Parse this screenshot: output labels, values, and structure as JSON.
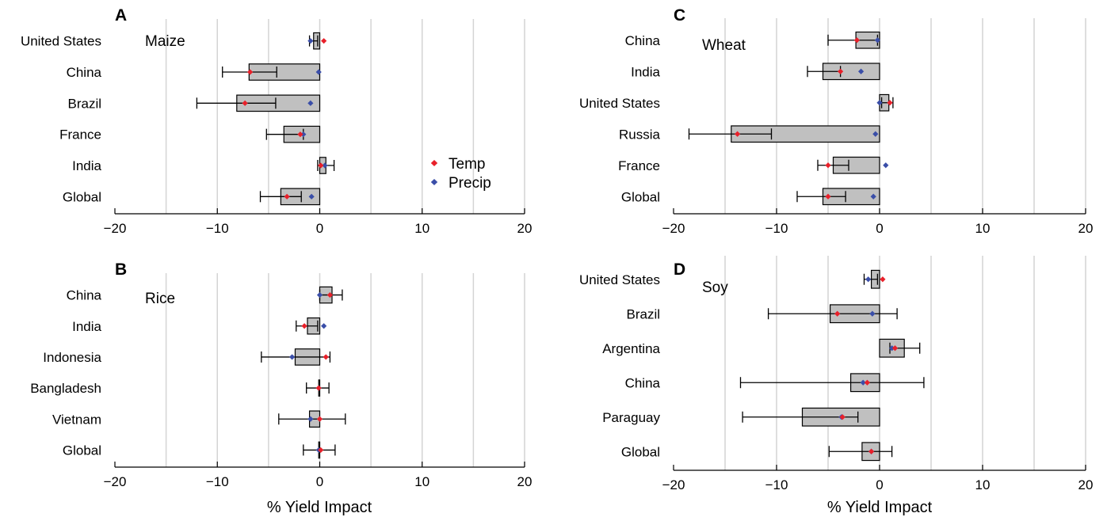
{
  "colors": {
    "bar_fill": "#c0c0c0",
    "bar_stroke": "#000000",
    "grid": "#d4d4d4",
    "temp": "#e8202a",
    "precip": "#3a4ea8"
  },
  "legend": {
    "temp": "Temp",
    "precip": "Precip"
  },
  "xlabel": "% Yield Impact",
  "chart_data": [
    {
      "type": "bar",
      "panel": "A",
      "title": "Maize",
      "xlim": [
        -20,
        20
      ],
      "xticks": [
        -20,
        -10,
        0,
        10,
        20
      ],
      "xtick_labels": [
        "−20",
        "−10",
        "0",
        "10",
        "20"
      ],
      "grid": true,
      "legend_position": "right",
      "categories": [
        "United States",
        "China",
        "Brazil",
        "France",
        "India",
        "Global"
      ],
      "values": [
        -0.6,
        -6.9,
        -8.1,
        -3.5,
        0.6,
        -3.8
      ],
      "error_low": [
        -1.0,
        -9.5,
        -12.0,
        -5.2,
        -0.2,
        -5.8
      ],
      "error_high": [
        -0.2,
        -4.2,
        -4.3,
        -1.6,
        1.4,
        -1.8
      ],
      "temp": [
        0.4,
        -6.8,
        -7.3,
        -1.9,
        0.1,
        -3.2
      ],
      "precip": [
        -0.9,
        -0.1,
        -0.9,
        -1.6,
        0.5,
        -0.8
      ]
    },
    {
      "type": "bar",
      "panel": "B",
      "title": "Rice",
      "xlim": [
        -20,
        20
      ],
      "xticks": [
        -20,
        -10,
        0,
        10,
        20
      ],
      "xtick_labels": [
        "−20",
        "−10",
        "0",
        "10",
        "20"
      ],
      "grid": true,
      "categories": [
        "China",
        "India",
        "Indonesia",
        "Bangladesh",
        "Vietnam",
        "Global"
      ],
      "values": [
        1.2,
        -1.2,
        -2.4,
        -0.1,
        -1.0,
        -0.1
      ],
      "error_low": [
        0.0,
        -2.3,
        -5.7,
        -1.3,
        -4.0,
        -1.6
      ],
      "error_high": [
        2.2,
        -0.2,
        1.0,
        0.9,
        2.5,
        1.5
      ],
      "temp": [
        1.0,
        -1.5,
        0.6,
        -0.1,
        0.0,
        0.1
      ],
      "precip": [
        0.0,
        0.4,
        -2.7,
        -0.1,
        -0.9,
        -0.1
      ]
    },
    {
      "type": "bar",
      "panel": "C",
      "title": "Wheat",
      "xlim": [
        -20,
        20
      ],
      "xticks": [
        -20,
        -10,
        0,
        10,
        20
      ],
      "xtick_labels": [
        "−20",
        "−10",
        "0",
        "10",
        "20"
      ],
      "grid": true,
      "categories": [
        "China",
        "India",
        "United States",
        "Russia",
        "France",
        "Global"
      ],
      "values": [
        -2.3,
        -5.5,
        0.9,
        -14.4,
        -4.5,
        -5.5
      ],
      "error_low": [
        -5.0,
        -7.0,
        0.2,
        -18.5,
        -6.0,
        -8.0
      ],
      "error_high": [
        -0.2,
        -3.8,
        1.3,
        -10.5,
        -3.0,
        -3.3
      ],
      "temp": [
        -2.2,
        -3.8,
        1.0,
        -13.8,
        -5.0,
        -5.0
      ],
      "precip": [
        -0.2,
        -1.8,
        0.0,
        -0.4,
        0.6,
        -0.6
      ]
    },
    {
      "type": "bar",
      "panel": "D",
      "title": "Soy",
      "xlim": [
        -20,
        20
      ],
      "xticks": [
        -20,
        -10,
        0,
        10,
        20
      ],
      "xtick_labels": [
        "−20",
        "−10",
        "0",
        "10",
        "20"
      ],
      "grid": true,
      "categories": [
        "United States",
        "Brazil",
        "Argentina",
        "China",
        "Paraguay",
        "Global"
      ],
      "values": [
        -0.8,
        -4.8,
        2.4,
        -2.8,
        -7.5,
        -1.7
      ],
      "error_low": [
        -1.5,
        -10.8,
        1.0,
        -13.5,
        -13.3,
        -4.9
      ],
      "error_high": [
        -0.2,
        1.7,
        3.9,
        4.3,
        -2.1,
        1.2
      ],
      "temp": [
        0.3,
        -4.1,
        1.5,
        -1.2,
        -3.6,
        -0.8
      ],
      "precip": [
        -1.1,
        -0.7,
        1.2,
        -1.6,
        -3.7,
        -0.8
      ]
    }
  ]
}
